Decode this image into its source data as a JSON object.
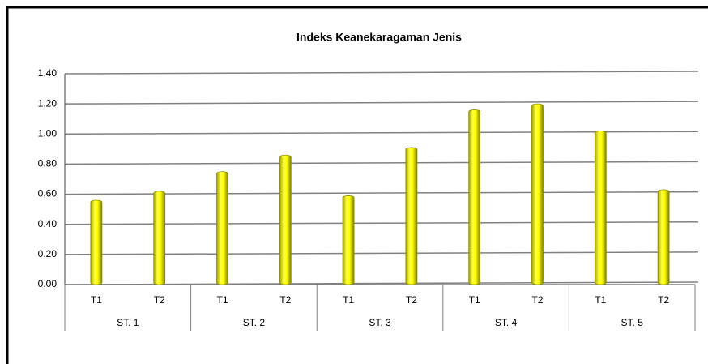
{
  "chart_data": {
    "type": "bar",
    "title": "Indeks Keanekaragaman Jenis",
    "categories": [
      "T1",
      "T2",
      "T1",
      "T2",
      "T1",
      "T2",
      "T1",
      "T2",
      "T1",
      "T2"
    ],
    "groups": [
      "ST. 1",
      "ST. 2",
      "ST. 3",
      "ST. 4",
      "ST. 5"
    ],
    "values": [
      0.56,
      0.62,
      0.75,
      0.86,
      0.59,
      0.91,
      1.16,
      1.2,
      1.02,
      0.63
    ],
    "color": "#ffff00",
    "ylim": [
      0,
      1.4
    ],
    "yticks": [
      {
        "value": 0,
        "label": "0.00"
      },
      {
        "value": 0.2,
        "label": "0.20"
      },
      {
        "value": 0.4,
        "label": "0.40"
      },
      {
        "value": 0.6,
        "label": "0.60"
      },
      {
        "value": 0.8,
        "label": "0.80"
      },
      {
        "value": 1,
        "label": "1.00"
      },
      {
        "value": 1.2,
        "label": "1.20"
      },
      {
        "value": 1.4,
        "label": "1.40"
      }
    ],
    "grid": true
  }
}
